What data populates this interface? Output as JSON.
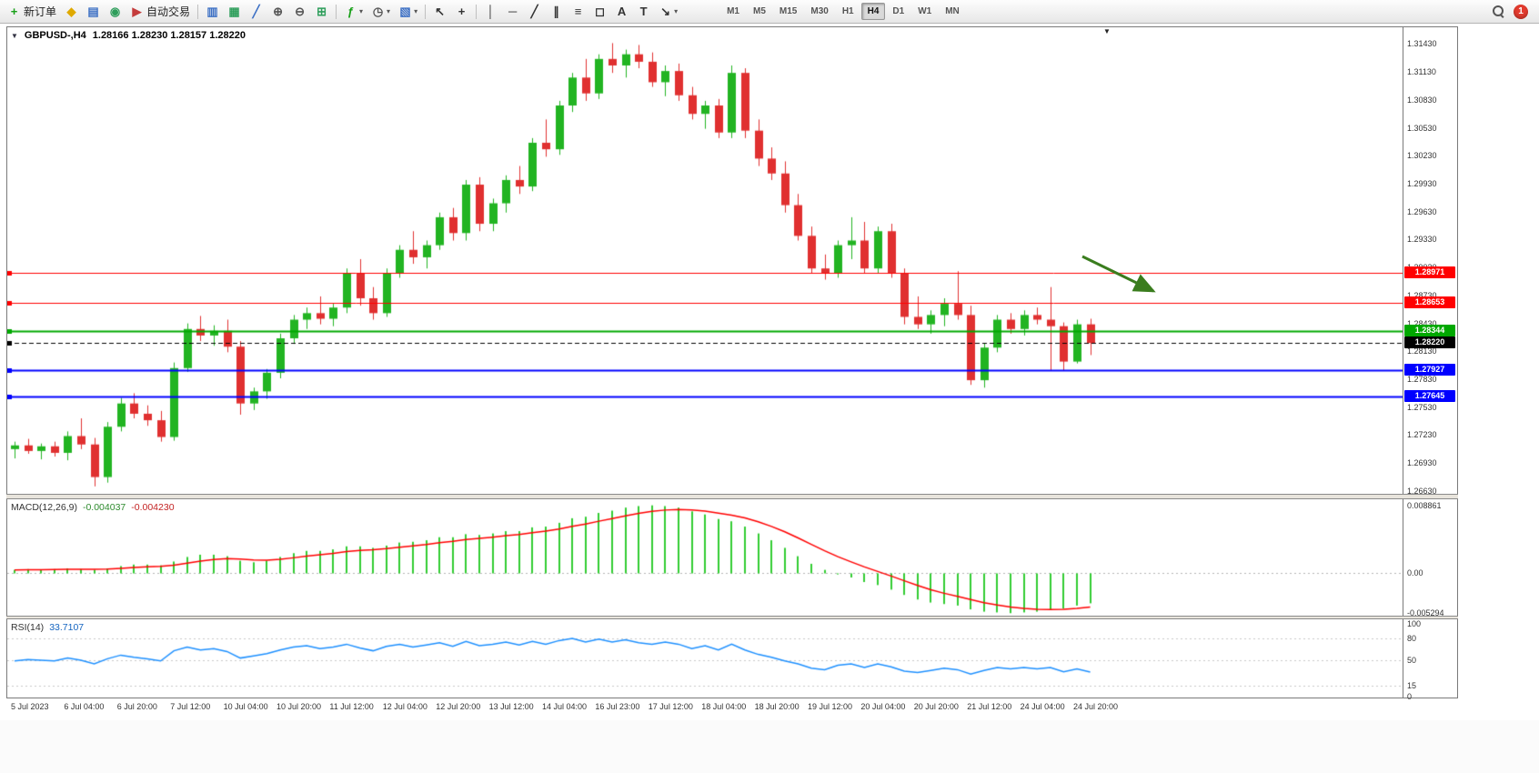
{
  "toolbar": {
    "buttons": [
      {
        "name": "new-order-button",
        "icon": "new-order-icon",
        "char": "+",
        "color": "#18a018",
        "label": "新订单"
      },
      {
        "name": "market-watch-button",
        "icon": "market-watch-icon",
        "char": "◆",
        "color": "#dfa900"
      },
      {
        "name": "data-window-button",
        "icon": "data-window-icon",
        "char": "▤",
        "color": "#3b6fc4"
      },
      {
        "name": "navigator-button",
        "icon": "navigator-icon",
        "char": "◉",
        "color": "#2e9e5b"
      },
      {
        "name": "auto-trading-button",
        "icon": "auto-trading-icon",
        "char": "▶",
        "color": "#c43c3c",
        "label": "自动交易"
      },
      {
        "sep": true
      },
      {
        "name": "bar-chart-button",
        "icon": "bar-chart-icon",
        "char": "▥",
        "color": "#3b6fc4"
      },
      {
        "name": "candlestick-chart-button",
        "icon": "candlestick-chart-icon",
        "char": "▦",
        "color": "#2e9e5b"
      },
      {
        "name": "line-chart-button",
        "icon": "line-chart-icon",
        "char": "╱",
        "color": "#3b6fc4"
      },
      {
        "name": "zoom-in-button",
        "icon": "zoom-in-icon",
        "char": "⊕",
        "color": "#555555"
      },
      {
        "name": "zoom-out-button",
        "icon": "zoom-out-icon",
        "char": "⊖",
        "color": "#555555"
      },
      {
        "name": "tile-windows-button",
        "icon": "tile-windows-icon",
        "char": "⊞",
        "color": "#2e9e5b"
      },
      {
        "sep": true
      },
      {
        "name": "indicators-button",
        "icon": "indicators-icon",
        "char": "ƒ",
        "color": "#18a018",
        "caret": true
      },
      {
        "name": "periods-button",
        "icon": "periods-icon",
        "char": "◷",
        "color": "#555555",
        "caret": true
      },
      {
        "name": "templates-button",
        "icon": "templates-icon",
        "char": "▧",
        "color": "#3b6fc4",
        "caret": true
      },
      {
        "sep": true
      },
      {
        "name": "cursor-button",
        "icon": "cursor-icon",
        "char": "↖",
        "color": "#333333"
      },
      {
        "name": "crosshair-button",
        "icon": "crosshair-icon",
        "char": "+",
        "color": "#333333"
      },
      {
        "sep": true
      },
      {
        "name": "vertical-line-button",
        "icon": "vertical-line-icon",
        "char": "│",
        "color": "#333333"
      },
      {
        "name": "horizontal-line-button",
        "icon": "horizontal-line-icon",
        "char": "─",
        "color": "#333333"
      },
      {
        "name": "trendline-button",
        "icon": "trendline-icon",
        "char": "╱",
        "color": "#333333"
      },
      {
        "name": "channel-button",
        "icon": "channel-icon",
        "char": "∥",
        "color": "#333333"
      },
      {
        "name": "fibonacci-button",
        "icon": "fibonacci-icon",
        "char": "≡",
        "color": "#333333"
      },
      {
        "name": "shapes-button",
        "icon": "shapes-icon",
        "char": "◻",
        "color": "#333333"
      },
      {
        "name": "text-button",
        "icon": "text-icon",
        "char": "A",
        "color": "#333333"
      },
      {
        "name": "label-button",
        "icon": "label-icon",
        "char": "T",
        "color": "#333333"
      },
      {
        "name": "arrows-button",
        "icon": "arrows-icon",
        "char": "↘",
        "color": "#333333",
        "caret": true
      }
    ],
    "timeframes": [
      "M1",
      "M5",
      "M15",
      "M30",
      "H1",
      "H4",
      "D1",
      "W1",
      "MN"
    ],
    "active_timeframe": "H4",
    "notification_count": "1"
  },
  "chart": {
    "symbol": "GBPUSD-,H4",
    "ohlc": "1.28166 1.28230 1.28157 1.28220",
    "one_click_char": "▼",
    "shift_marker_char": "▼"
  },
  "chart_data": [
    {
      "type": "candlestick",
      "name": "GBPUSD H4",
      "ylim": [
        1.266,
        1.3161
      ],
      "x_start": 8,
      "x_step": 14.6,
      "body_width": 9,
      "x_label_step": 4,
      "colors": {
        "bull": "#22b422",
        "bear": "#e03030"
      },
      "y_axis_labels": [
        "1.31430",
        "1.31130",
        "1.30830",
        "1.30530",
        "1.30230",
        "1.29930",
        "1.29630",
        "1.29330",
        "1.29030",
        "1.28730",
        "1.28430",
        "1.28130",
        "1.27830",
        "1.27530",
        "1.27230",
        "1.26930",
        "1.26630"
      ],
      "x_labels": [
        "5 Jul 2023",
        "6 Jul 04:00",
        "6 Jul 20:00",
        "7 Jul 12:00",
        "10 Jul 04:00",
        "10 Jul 20:00",
        "11 Jul 12:00",
        "12 Jul 04:00",
        "12 Jul 20:00",
        "13 Jul 12:00",
        "14 Jul 04:00",
        "16 Jul 23:00",
        "17 Jul 12:00",
        "18 Jul 04:00",
        "18 Jul 20:00",
        "19 Jul 12:00",
        "20 Jul 04:00",
        "20 Jul 20:00",
        "21 Jul 12:00",
        "24 Jul 04:00",
        "24 Jul 20:00"
      ],
      "levels": [
        {
          "label": "1.28971",
          "value": 1.28971,
          "color": "#ff0000",
          "width": 1,
          "dash": false,
          "role": "resistance-line-1"
        },
        {
          "label": "1.28653",
          "value": 1.28653,
          "color": "#ff0000",
          "width": 1,
          "dash": false,
          "role": "resistance-line-2"
        },
        {
          "label": "1.28344",
          "value": 1.28344,
          "color": "#00a800",
          "width": 2,
          "dash": false,
          "role": "pivot-line"
        },
        {
          "label": "1.28220",
          "value": 1.2822,
          "color": "#000000",
          "width": 1,
          "dash": true,
          "role": "current-price"
        },
        {
          "label": "1.27927",
          "value": 1.27927,
          "color": "#0000ff",
          "width": 2,
          "dash": false,
          "role": "support-line-1"
        },
        {
          "label": "1.27645",
          "value": 1.27645,
          "color": "#0000ff",
          "width": 2,
          "dash": false,
          "role": "support-line-2"
        }
      ],
      "annotations": {
        "arrow": {
          "color": "#3a7d1e"
        }
      },
      "candles": [
        [
          1.2708,
          1.2716,
          1.2698,
          1.2712
        ],
        [
          1.2712,
          1.2719,
          1.2703,
          1.2706
        ],
        [
          1.2706,
          1.2714,
          1.2697,
          1.2711
        ],
        [
          1.2711,
          1.2716,
          1.27,
          1.2704
        ],
        [
          1.2704,
          1.2727,
          1.2696,
          1.2722
        ],
        [
          1.2722,
          1.2741,
          1.2708,
          1.2713
        ],
        [
          1.2713,
          1.272,
          1.2668,
          1.2678
        ],
        [
          1.2678,
          1.2737,
          1.2672,
          1.2732
        ],
        [
          1.2732,
          1.2763,
          1.2727,
          1.2757
        ],
        [
          1.2757,
          1.2768,
          1.2741,
          1.2746
        ],
        [
          1.2746,
          1.2755,
          1.2733,
          1.2739
        ],
        [
          1.2739,
          1.2749,
          1.2716,
          1.2721
        ],
        [
          1.2721,
          1.2801,
          1.2717,
          1.2795
        ],
        [
          1.2795,
          1.2843,
          1.2791,
          1.2837
        ],
        [
          1.2837,
          1.2851,
          1.2824,
          1.283
        ],
        [
          1.283,
          1.2841,
          1.2819,
          1.2835
        ],
        [
          1.2835,
          1.2847,
          1.2812,
          1.2818
        ],
        [
          1.2818,
          1.2824,
          1.2745,
          1.2757
        ],
        [
          1.2757,
          1.2774,
          1.275,
          1.277
        ],
        [
          1.277,
          1.2794,
          1.2762,
          1.279
        ],
        [
          1.279,
          1.2832,
          1.2784,
          1.2827
        ],
        [
          1.2827,
          1.2852,
          1.2821,
          1.2847
        ],
        [
          1.2847,
          1.286,
          1.2837,
          1.2854
        ],
        [
          1.2854,
          1.2872,
          1.2842,
          1.2848
        ],
        [
          1.2848,
          1.2864,
          1.284,
          1.286
        ],
        [
          1.286,
          1.2902,
          1.2854,
          1.2897
        ],
        [
          1.2897,
          1.2912,
          1.2862,
          1.287
        ],
        [
          1.287,
          1.2882,
          1.2847,
          1.2854
        ],
        [
          1.2854,
          1.2902,
          1.285,
          1.2897
        ],
        [
          1.2897,
          1.2927,
          1.2892,
          1.2922
        ],
        [
          1.2922,
          1.2942,
          1.2907,
          1.2914
        ],
        [
          1.2914,
          1.2932,
          1.2902,
          1.2927
        ],
        [
          1.2927,
          1.2962,
          1.2922,
          1.2957
        ],
        [
          1.2957,
          1.2967,
          1.2932,
          1.294
        ],
        [
          1.294,
          1.2997,
          1.2932,
          1.2992
        ],
        [
          1.2992,
          1.3,
          1.2942,
          1.295
        ],
        [
          1.295,
          1.2977,
          1.2942,
          1.2972
        ],
        [
          1.2972,
          1.3002,
          1.2962,
          1.2997
        ],
        [
          1.2997,
          1.3012,
          1.2982,
          1.299
        ],
        [
          1.299,
          1.3042,
          1.2985,
          1.3037
        ],
        [
          1.3037,
          1.3062,
          1.3022,
          1.303
        ],
        [
          1.303,
          1.3082,
          1.3024,
          1.3077
        ],
        [
          1.3077,
          1.3112,
          1.307,
          1.3107
        ],
        [
          1.3107,
          1.3127,
          1.3082,
          1.309
        ],
        [
          1.309,
          1.3132,
          1.3084,
          1.3127
        ],
        [
          1.3127,
          1.3144,
          1.3112,
          1.312
        ],
        [
          1.312,
          1.3137,
          1.3107,
          1.3132
        ],
        [
          1.3132,
          1.3142,
          1.3117,
          1.3124
        ],
        [
          1.3124,
          1.3134,
          1.3097,
          1.3102
        ],
        [
          1.3102,
          1.312,
          1.3087,
          1.3114
        ],
        [
          1.3114,
          1.3122,
          1.3082,
          1.3088
        ],
        [
          1.3088,
          1.3097,
          1.3062,
          1.3068
        ],
        [
          1.3068,
          1.3082,
          1.3052,
          1.3077
        ],
        [
          1.3077,
          1.3084,
          1.3042,
          1.3048
        ],
        [
          1.3048,
          1.312,
          1.3042,
          1.3112
        ],
        [
          1.3112,
          1.3117,
          1.3042,
          1.305
        ],
        [
          1.305,
          1.3062,
          1.3012,
          1.302
        ],
        [
          1.302,
          1.3032,
          1.2997,
          1.3004
        ],
        [
          1.3004,
          1.3017,
          1.2962,
          1.297
        ],
        [
          1.297,
          1.2982,
          1.2932,
          1.2937
        ],
        [
          1.2937,
          1.2947,
          1.2897,
          1.2902
        ],
        [
          1.2902,
          1.2917,
          1.289,
          1.2897
        ],
        [
          1.2897,
          1.2932,
          1.2892,
          1.2927
        ],
        [
          1.2927,
          1.2957,
          1.2912,
          1.2932
        ],
        [
          1.2932,
          1.2952,
          1.2897,
          1.2902
        ],
        [
          1.2902,
          1.2947,
          1.2897,
          1.2942
        ],
        [
          1.2942,
          1.295,
          1.2892,
          1.2897
        ],
        [
          1.2897,
          1.2902,
          1.2842,
          1.285
        ],
        [
          1.285,
          1.2872,
          1.2837,
          1.2842
        ],
        [
          1.2842,
          1.2857,
          1.2832,
          1.2852
        ],
        [
          1.2852,
          1.287,
          1.284,
          1.2864
        ],
        [
          1.2864,
          1.2899,
          1.2847,
          1.2852
        ],
        [
          1.2852,
          1.2862,
          1.2777,
          1.2782
        ],
        [
          1.2782,
          1.2822,
          1.2774,
          1.2817
        ],
        [
          1.2817,
          1.2852,
          1.2812,
          1.2847
        ],
        [
          1.2847,
          1.2854,
          1.2832,
          1.2837
        ],
        [
          1.2837,
          1.2857,
          1.283,
          1.2852
        ],
        [
          1.2852,
          1.286,
          1.2842,
          1.2847
        ],
        [
          1.2847,
          1.2882,
          1.2792,
          1.284
        ],
        [
          1.284,
          1.2844,
          1.2792,
          1.2802
        ],
        [
          1.2802,
          1.2847,
          1.28,
          1.2842
        ],
        [
          1.2842,
          1.2848,
          1.2809,
          1.2822
        ]
      ]
    },
    {
      "type": "bar",
      "name": "MACD(12,26,9)",
      "readout": {
        "main": "-0.004037",
        "signal": "-0.004230"
      },
      "ylim": [
        -0.00563,
        0.0097
      ],
      "axis_labels": [
        "0.008861",
        "0.00",
        "-0.005294"
      ],
      "colors": {
        "histogram": "#32cd32",
        "signal": "#ff0000"
      },
      "values": [
        0.0004,
        0.0005,
        0.0004,
        0.0005,
        0.0006,
        0.0005,
        0.0004,
        0.0006,
        0.0009,
        0.0011,
        0.0011,
        0.001,
        0.0015,
        0.0021,
        0.0024,
        0.0024,
        0.0022,
        0.0016,
        0.0014,
        0.0016,
        0.0021,
        0.0026,
        0.0029,
        0.0029,
        0.0031,
        0.0035,
        0.0035,
        0.0033,
        0.0036,
        0.004,
        0.0041,
        0.0043,
        0.0047,
        0.0047,
        0.0051,
        0.005,
        0.0052,
        0.0055,
        0.0055,
        0.006,
        0.0061,
        0.0066,
        0.0072,
        0.0074,
        0.0079,
        0.0082,
        0.0086,
        0.0088,
        0.0089,
        0.0088,
        0.0086,
        0.0081,
        0.0077,
        0.0071,
        0.0068,
        0.0061,
        0.0052,
        0.0043,
        0.0033,
        0.0022,
        0.0012,
        0.0004,
        -0.0002,
        -0.0006,
        -0.0012,
        -0.0016,
        -0.0022,
        -0.0029,
        -0.0035,
        -0.0039,
        -0.0041,
        -0.0043,
        -0.0048,
        -0.0051,
        -0.0052,
        -0.0053,
        -0.0052,
        -0.0051,
        -0.0049,
        -0.0047,
        -0.0043,
        -0.004
      ]
    },
    {
      "type": "line",
      "name": "RSI(14)",
      "readout": "33.7107",
      "ylim": [
        0,
        100
      ],
      "levels": [
        80,
        50,
        15
      ],
      "axis_labels": [
        "100",
        "80",
        "50",
        "15",
        "0"
      ],
      "color": "#1e90ff",
      "values": [
        49,
        51,
        50,
        49,
        53,
        50,
        45,
        52,
        57,
        54,
        52,
        49,
        63,
        68,
        64,
        66,
        62,
        53,
        56,
        59,
        64,
        68,
        70,
        66,
        68,
        72,
        67,
        63,
        69,
        72,
        68,
        71,
        74,
        69,
        76,
        70,
        72,
        75,
        71,
        76,
        72,
        77,
        80,
        75,
        79,
        75,
        78,
        74,
        72,
        75,
        72,
        66,
        70,
        64,
        72,
        64,
        58,
        54,
        49,
        45,
        39,
        37,
        43,
        45,
        40,
        45,
        41,
        35,
        33,
        36,
        39,
        37,
        31,
        36,
        40,
        38,
        40,
        38,
        40,
        34,
        38,
        33.71
      ]
    }
  ]
}
